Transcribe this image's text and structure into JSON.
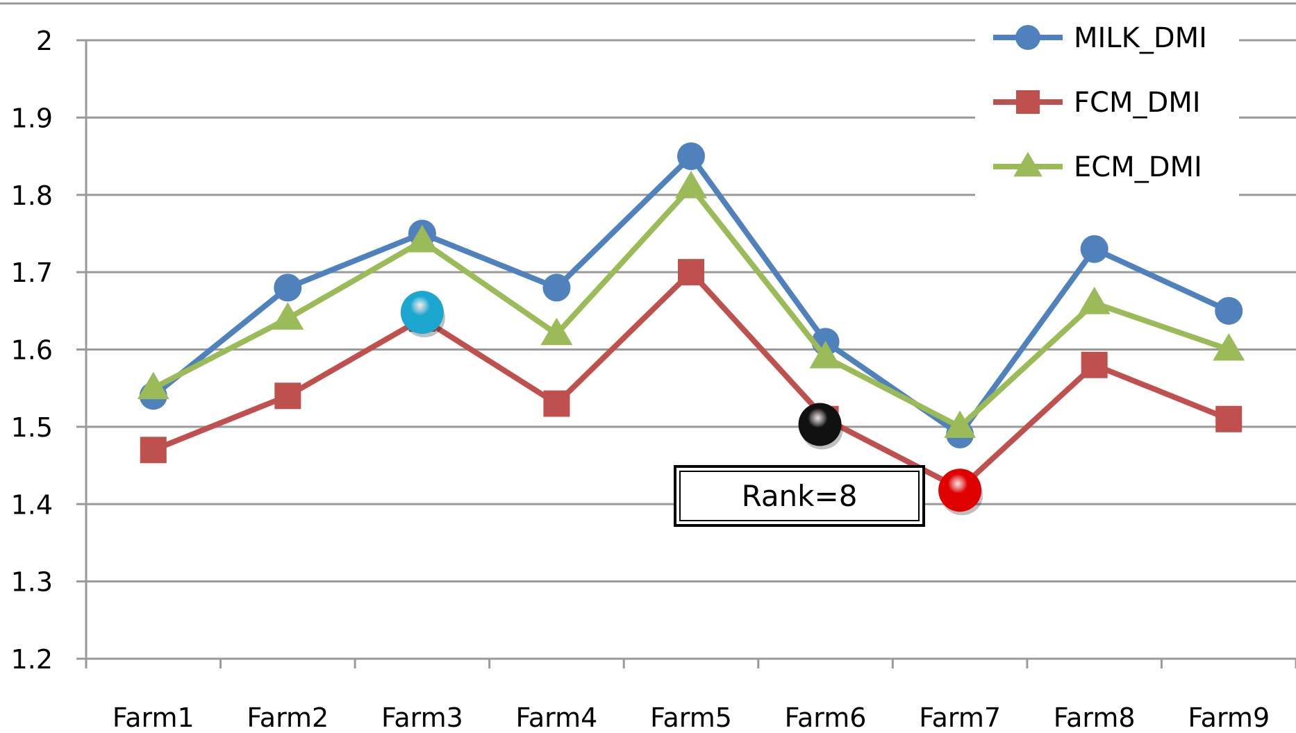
{
  "chart_data": {
    "type": "line",
    "title": "",
    "xlabel": "",
    "ylabel": "",
    "categories": [
      "Farm1",
      "Farm2",
      "Farm3",
      "Farm4",
      "Farm5",
      "Farm6",
      "Farm7",
      "Farm8",
      "Farm9"
    ],
    "ylim": [
      1.2,
      2.0
    ],
    "yticks": [
      "1.2",
      "1.3",
      "1.4",
      "1.5",
      "1.6",
      "1.7",
      "1.8",
      "1.9",
      "2"
    ],
    "grid": true,
    "legend_position": "top-right",
    "series": [
      {
        "name": "MILK_DMI",
        "color": "#4f81bd",
        "marker": "circle",
        "values": [
          1.54,
          1.68,
          1.75,
          1.68,
          1.85,
          1.61,
          1.49,
          1.73,
          1.65
        ]
      },
      {
        "name": "FCM_DMI",
        "color": "#c0504d",
        "marker": "square",
        "values": [
          1.47,
          1.54,
          1.64,
          1.53,
          1.7,
          1.51,
          1.42,
          1.58,
          1.51
        ]
      },
      {
        "name": "ECM_DMI",
        "color": "#9bbb59",
        "marker": "triangle",
        "values": [
          1.55,
          1.64,
          1.74,
          1.62,
          1.81,
          1.59,
          1.5,
          1.66,
          1.6
        ]
      }
    ],
    "highlights": [
      {
        "category": "Farm3",
        "value": 1.648,
        "color": "#1aa6cf"
      },
      {
        "category": "Farm6",
        "value": 1.503,
        "color": "#111111"
      },
      {
        "category": "Farm7",
        "value": 1.418,
        "color": "#e00000"
      }
    ],
    "annotations": [
      {
        "text": "Rank=8"
      }
    ]
  }
}
